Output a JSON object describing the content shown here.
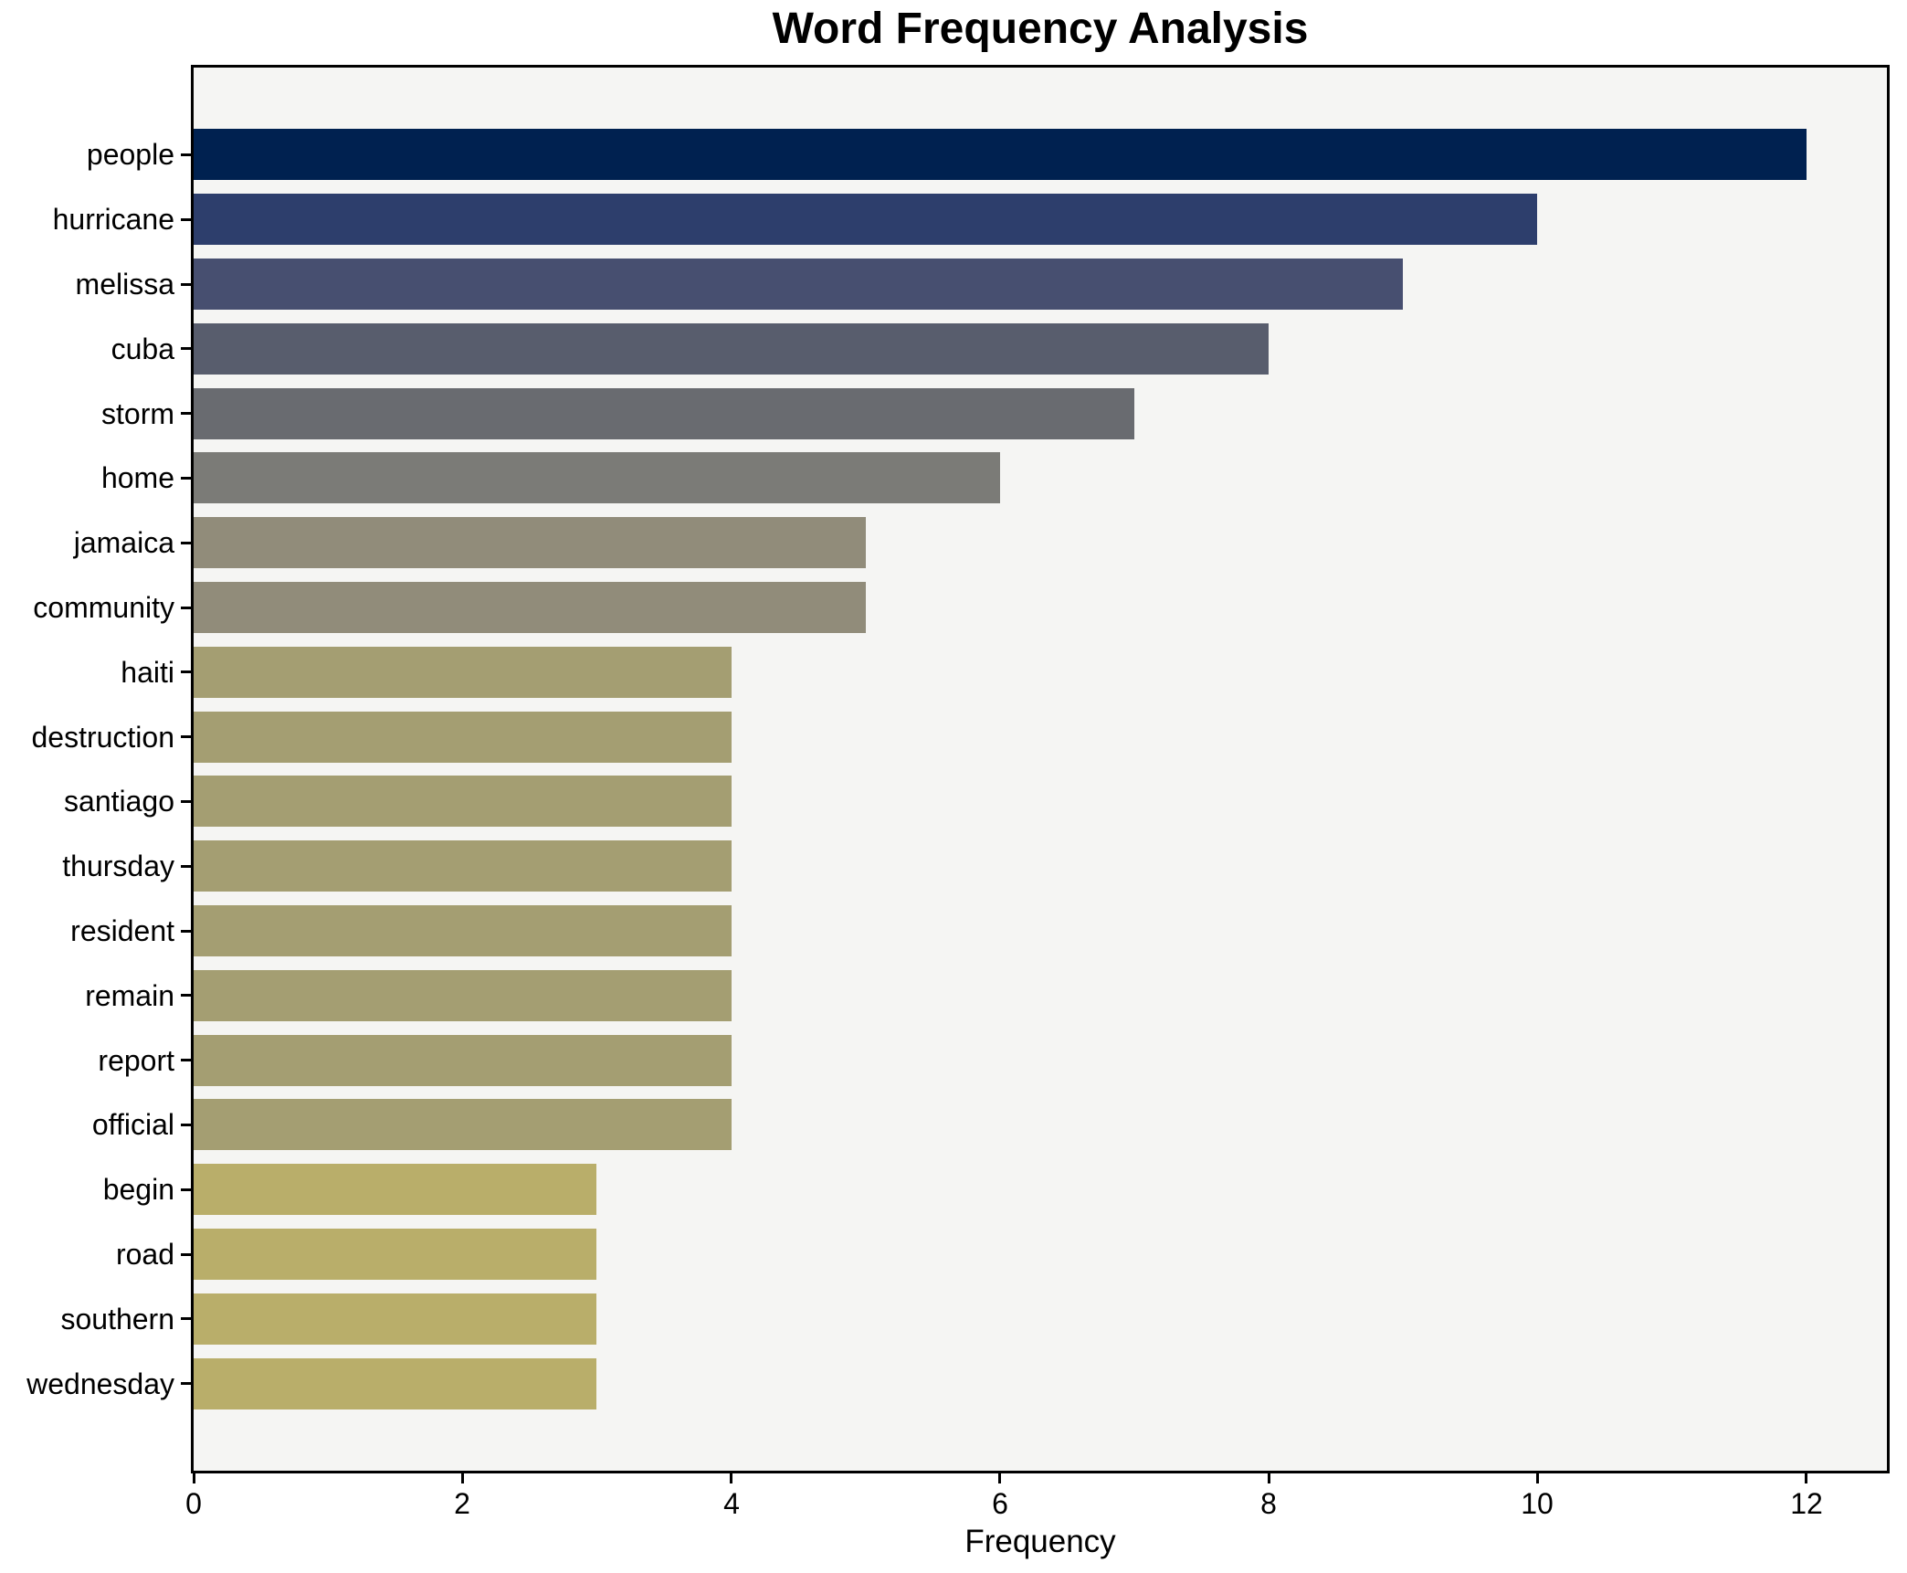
{
  "title": "Word Frequency Analysis",
  "chart_data": {
    "type": "bar",
    "orientation": "horizontal",
    "title": "Word Frequency Analysis",
    "xlabel": "Frequency",
    "ylabel": "",
    "categories": [
      "people",
      "hurricane",
      "melissa",
      "cuba",
      "storm",
      "home",
      "jamaica",
      "community",
      "haiti",
      "destruction",
      "santiago",
      "thursday",
      "resident",
      "remain",
      "report",
      "official",
      "begin",
      "road",
      "southern",
      "wednesday"
    ],
    "values": [
      12,
      10,
      9,
      8,
      7,
      6,
      5,
      5,
      4,
      4,
      4,
      4,
      4,
      4,
      4,
      4,
      3,
      3,
      3,
      3
    ],
    "bar_colors": [
      "#002150",
      "#2d3e6c",
      "#474f70",
      "#585d6d",
      "#696b70",
      "#7b7b77",
      "#918c7a",
      "#918c7a",
      "#a49e72",
      "#a49e72",
      "#a49e72",
      "#a49e72",
      "#a49e72",
      "#a49e72",
      "#a49e72",
      "#a49e72",
      "#b9ae6a",
      "#b9ae6a",
      "#b9ae6a",
      "#b9ae6a"
    ],
    "xticks": [
      0,
      2,
      4,
      6,
      8,
      10,
      12
    ],
    "xlim": [
      0,
      12.6
    ],
    "grid": false,
    "legend_position": "none",
    "figure_bg": "#ffffff",
    "plot_bg": "#f5f5f3",
    "spine_color": "#000000",
    "text_color": "#000000"
  }
}
